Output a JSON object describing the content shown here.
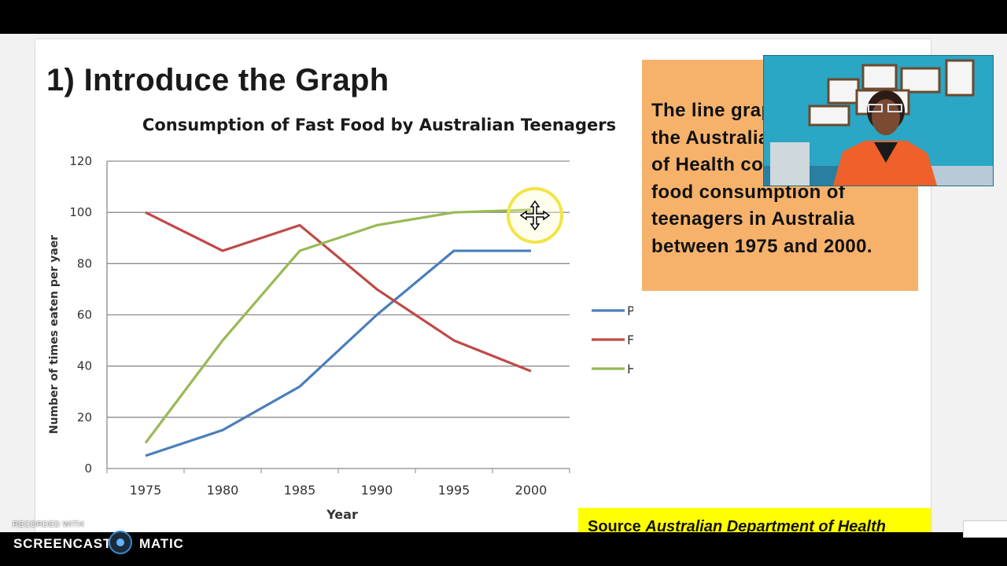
{
  "slide": {
    "title": "1) Introduce the Graph",
    "intro_text": "The line graph produced by the Australian Department of Health compares the fast food consumption of teenagers in Australia between 1975 and 2000.",
    "source_label": "Source",
    "source_name": "Australian Department of Health"
  },
  "chart_data": {
    "type": "line",
    "title": "Consumption of Fast Food by Australian Teenagers",
    "xlabel": "Year",
    "ylabel": "Number of times eaten per yaer",
    "x": [
      1975,
      1980,
      1985,
      1990,
      1995,
      2000
    ],
    "x_tick_labels": [
      "1975",
      "1980",
      "1985",
      "1990",
      "1995",
      "2000"
    ],
    "y_tick_labels": [
      "0",
      "20",
      "40",
      "60",
      "80",
      "100",
      "120"
    ],
    "ylim": [
      0,
      120
    ],
    "grid": true,
    "legend_position": "right",
    "series": [
      {
        "name": "Pizza",
        "color": "#4a7ebb",
        "values": [
          5,
          15,
          32,
          60,
          85,
          85
        ]
      },
      {
        "name": "Fish and Chips",
        "color": "#be4b48",
        "values": [
          100,
          85,
          95,
          70,
          50,
          38
        ]
      },
      {
        "name": "Hamburgers",
        "color": "#98b954",
        "values": [
          10,
          50,
          85,
          95,
          100,
          101
        ]
      }
    ]
  },
  "recorder": {
    "recorded_with": "RECORDED WITH",
    "brand_left": "SCREENCAST",
    "brand_right": "MATIC"
  },
  "colors": {
    "accent_orange": "#f6b26b",
    "source_yellow": "#ffff00",
    "cursor_ring": "#f1e547"
  }
}
